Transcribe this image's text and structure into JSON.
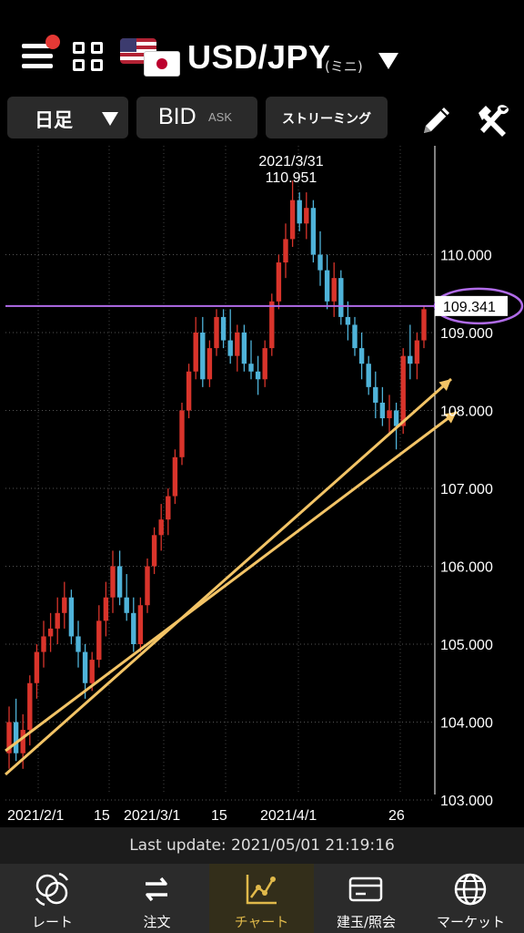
{
  "header": {
    "pair": "USD/JPY",
    "pair_suffix": "(ミニ)"
  },
  "toolbar": {
    "period_label": "日足",
    "bid_label": "BID",
    "ask_label": "ASK",
    "stream_label": "ストリーミング"
  },
  "colors": {
    "up": "#d9342b",
    "down": "#4fb3d9",
    "line": "#b06be8",
    "trend": "#f3c466",
    "axis": "#ffffff"
  },
  "chart_data": {
    "type": "candlestick",
    "y_ticks": [
      "110.000",
      "109.000",
      "108.000",
      "107.000",
      "106.000",
      "105.000",
      "104.000",
      "103.000"
    ],
    "ylim": [
      103.0,
      111.6
    ],
    "x_labels": [
      "2021/2/1",
      "15",
      "2021/3/1",
      "15",
      "2021/4/1",
      "26"
    ],
    "high_label_date": "2021/3/31",
    "high_label_value": "110.951",
    "price_line": 109.341,
    "price_label": "109.341",
    "candles": [
      [
        103.6,
        104.2,
        103.4,
        104.0
      ],
      [
        104.0,
        104.3,
        103.5,
        103.6
      ],
      [
        103.6,
        104.1,
        103.4,
        103.9
      ],
      [
        103.9,
        104.6,
        103.7,
        104.5
      ],
      [
        104.5,
        105.0,
        104.3,
        104.9
      ],
      [
        104.9,
        105.3,
        104.7,
        105.1
      ],
      [
        105.1,
        105.4,
        104.9,
        105.2
      ],
      [
        105.2,
        105.6,
        105.0,
        105.4
      ],
      [
        105.4,
        105.8,
        105.2,
        105.6
      ],
      [
        105.6,
        105.7,
        105.0,
        105.1
      ],
      [
        105.1,
        105.3,
        104.7,
        104.9
      ],
      [
        104.9,
        105.0,
        104.3,
        104.5
      ],
      [
        104.5,
        104.9,
        104.4,
        104.8
      ],
      [
        104.8,
        105.5,
        104.7,
        105.3
      ],
      [
        105.3,
        105.8,
        105.1,
        105.6
      ],
      [
        105.6,
        106.2,
        105.4,
        106.0
      ],
      [
        106.0,
        106.2,
        105.5,
        105.6
      ],
      [
        105.6,
        105.9,
        105.3,
        105.4
      ],
      [
        105.4,
        105.6,
        104.9,
        105.0
      ],
      [
        105.0,
        105.6,
        104.9,
        105.5
      ],
      [
        105.5,
        106.1,
        105.4,
        106.0
      ],
      [
        106.0,
        106.5,
        105.9,
        106.4
      ],
      [
        106.4,
        106.8,
        106.2,
        106.6
      ],
      [
        106.6,
        107.0,
        106.4,
        106.9
      ],
      [
        106.9,
        107.5,
        106.8,
        107.4
      ],
      [
        107.4,
        108.1,
        107.3,
        108.0
      ],
      [
        108.0,
        108.6,
        107.9,
        108.5
      ],
      [
        108.5,
        109.2,
        108.4,
        109.0
      ],
      [
        109.0,
        109.2,
        108.3,
        108.4
      ],
      [
        108.4,
        108.9,
        108.3,
        108.8
      ],
      [
        108.8,
        109.3,
        108.7,
        109.2
      ],
      [
        109.2,
        109.3,
        108.8,
        108.9
      ],
      [
        108.9,
        109.3,
        108.6,
        108.7
      ],
      [
        108.7,
        109.1,
        108.5,
        109.0
      ],
      [
        109.0,
        109.1,
        108.5,
        108.6
      ],
      [
        108.6,
        108.9,
        108.4,
        108.5
      ],
      [
        108.5,
        108.7,
        108.2,
        108.4
      ],
      [
        108.4,
        108.9,
        108.3,
        108.8
      ],
      [
        108.8,
        109.5,
        108.7,
        109.4
      ],
      [
        109.4,
        110.0,
        109.3,
        109.9
      ],
      [
        109.9,
        110.4,
        109.7,
        110.2
      ],
      [
        110.2,
        110.95,
        110.1,
        110.7
      ],
      [
        110.7,
        110.8,
        110.3,
        110.4
      ],
      [
        110.4,
        110.8,
        110.2,
        110.6
      ],
      [
        110.6,
        110.7,
        109.9,
        110.0
      ],
      [
        110.0,
        110.3,
        109.6,
        109.8
      ],
      [
        109.8,
        110.0,
        109.3,
        109.4
      ],
      [
        109.4,
        109.9,
        109.2,
        109.7
      ],
      [
        109.7,
        109.8,
        109.1,
        109.2
      ],
      [
        109.2,
        109.4,
        108.9,
        109.1
      ],
      [
        109.1,
        109.2,
        108.7,
        108.8
      ],
      [
        108.8,
        109.0,
        108.4,
        108.6
      ],
      [
        108.6,
        108.7,
        108.2,
        108.3
      ],
      [
        108.3,
        108.5,
        107.9,
        108.1
      ],
      [
        108.1,
        108.3,
        107.8,
        107.9
      ],
      [
        107.9,
        108.2,
        107.7,
        108.0
      ],
      [
        108.0,
        108.1,
        107.5,
        107.8
      ],
      [
        107.8,
        108.8,
        107.7,
        108.7
      ],
      [
        108.7,
        109.1,
        108.4,
        108.6
      ],
      [
        108.6,
        109.0,
        108.4,
        108.9
      ],
      [
        108.9,
        109.35,
        108.8,
        109.3
      ]
    ],
    "trend_lines": [
      {
        "from": [
          "2021/1/28",
          103.2
        ],
        "to": [
          "2021/5/3",
          108.5
        ]
      },
      {
        "from": [
          "2021/1/28",
          103.6
        ],
        "to": [
          "2021/5/3",
          108.0
        ]
      }
    ]
  },
  "footer": {
    "last_update": "Last update:  2021/05/01 21:19:16"
  },
  "tabs": [
    {
      "label": "レート",
      "icon": "rate-coins-icon"
    },
    {
      "label": "注文",
      "icon": "order-arrows-icon"
    },
    {
      "label": "チャート",
      "icon": "chart-line-icon"
    },
    {
      "label": "建玉/照会",
      "icon": "card-icon"
    },
    {
      "label": "マーケット",
      "icon": "globe-icon"
    }
  ]
}
